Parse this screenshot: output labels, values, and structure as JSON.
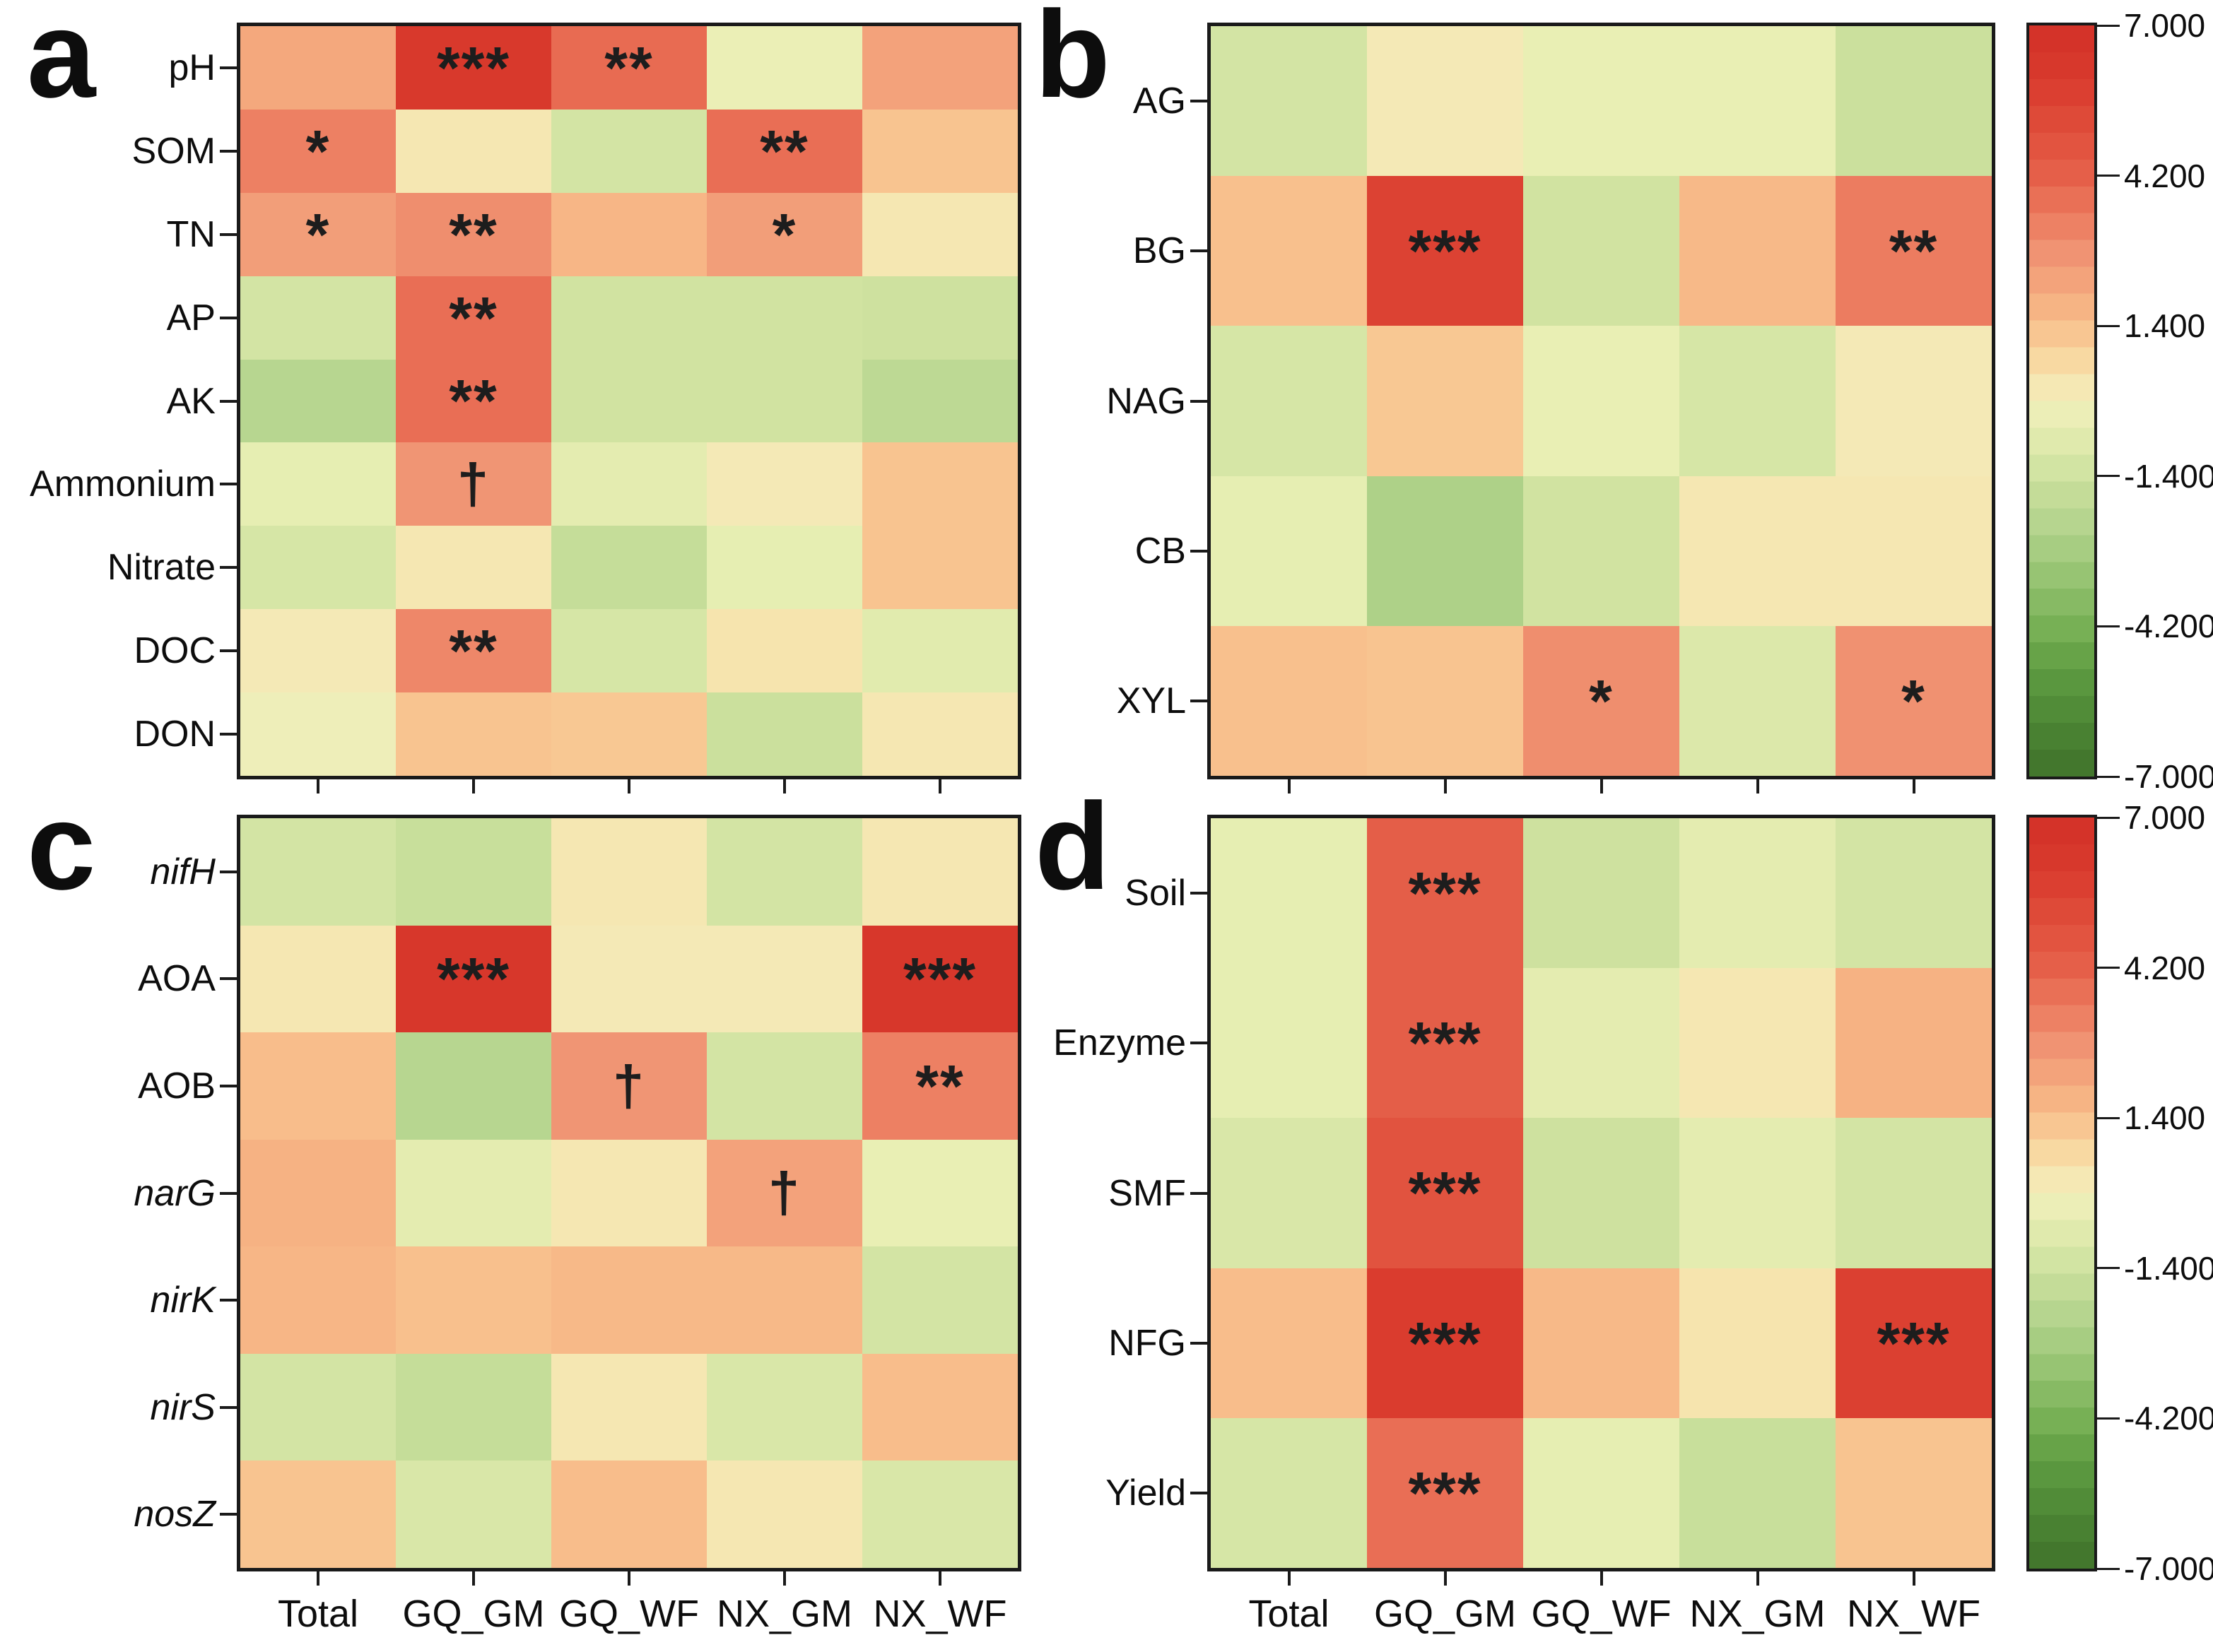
{
  "columns": [
    "Total",
    "GQ_GM",
    "GQ_WF",
    "NX_GM",
    "NX_WF"
  ],
  "chart_data": [
    {
      "id": "a",
      "type": "heatmap",
      "panel_label": "a",
      "rows": [
        "pH",
        "SOM",
        "TN",
        "AP",
        "AK",
        "Ammonium",
        "Nitrate",
        "DOC",
        "DON"
      ],
      "italic_rows": [],
      "columns": [
        "Total",
        "GQ_GM",
        "GQ_WF",
        "NX_GM",
        "NX_WF"
      ],
      "show_x_labels": false,
      "zlim": [
        -7,
        7
      ],
      "values": [
        [
          2.1,
          6.1,
          3.9,
          -0.3,
          2.3
        ],
        [
          3.3,
          0.3,
          -1.2,
          3.8,
          1.3
        ],
        [
          2.4,
          2.9,
          1.7,
          2.4,
          0.3
        ],
        [
          -1.2,
          3.8,
          -1.3,
          -1.3,
          -1.4
        ],
        [
          -2.2,
          3.8,
          -1.3,
          -1.3,
          -2.0
        ],
        [
          -0.5,
          2.7,
          -0.6,
          0.2,
          1.3
        ],
        [
          -1.1,
          0.3,
          -1.7,
          -0.5,
          1.3
        ],
        [
          0.2,
          3.1,
          -1.1,
          0.4,
          -0.7
        ],
        [
          -0.2,
          1.3,
          1.2,
          -1.5,
          0.3
        ]
      ],
      "significance": [
        [
          "",
          "***",
          "**",
          "",
          ""
        ],
        [
          "*",
          "",
          "",
          "**",
          ""
        ],
        [
          "*",
          "**",
          "",
          "*",
          ""
        ],
        [
          "",
          "**",
          "",
          "",
          ""
        ],
        [
          "",
          "**",
          "",
          "",
          ""
        ],
        [
          "",
          "†",
          "",
          "",
          ""
        ],
        [
          "",
          "",
          "",
          "",
          ""
        ],
        [
          "",
          "**",
          "",
          "",
          ""
        ],
        [
          "",
          "",
          "",
          "",
          ""
        ]
      ]
    },
    {
      "id": "b",
      "type": "heatmap",
      "panel_label": "b",
      "rows": [
        "AG",
        "BG",
        "NAG",
        "CB",
        "XYL"
      ],
      "italic_rows": [],
      "columns": [
        "Total",
        "GQ_GM",
        "GQ_WF",
        "NX_GM",
        "NX_WF"
      ],
      "show_x_labels": false,
      "zlim": [
        -7,
        7
      ],
      "values": [
        [
          -1.2,
          0.2,
          -0.4,
          -0.4,
          -1.5
        ],
        [
          1.4,
          5.6,
          -1.3,
          1.6,
          3.4
        ],
        [
          -1.1,
          1.2,
          -0.4,
          -1.1,
          0.2
        ],
        [
          -0.5,
          -2.5,
          -1.3,
          0.3,
          0.3
        ],
        [
          1.4,
          1.3,
          2.9,
          -0.9,
          2.8
        ]
      ],
      "significance": [
        [
          "",
          "",
          "",
          "",
          ""
        ],
        [
          "",
          "***",
          "",
          "",
          "**"
        ],
        [
          "",
          "",
          "",
          "",
          ""
        ],
        [
          "",
          "",
          "",
          "",
          ""
        ],
        [
          "",
          "",
          "*",
          "",
          "*"
        ]
      ]
    },
    {
      "id": "c",
      "type": "heatmap",
      "panel_label": "c",
      "rows": [
        "nifH",
        "AOA",
        "AOB",
        "narG",
        "nirK",
        "nirS",
        "nosZ"
      ],
      "italic_rows": [
        "nifH",
        "narG",
        "nirK",
        "nirS",
        "nosZ"
      ],
      "columns": [
        "Total",
        "GQ_GM",
        "GQ_WF",
        "NX_GM",
        "NX_WF"
      ],
      "show_x_labels": true,
      "zlim": [
        -7,
        7
      ],
      "values": [
        [
          -1.2,
          -1.6,
          0.3,
          -1.2,
          0.3
        ],
        [
          0.3,
          6.3,
          0.2,
          0.2,
          6.3
        ],
        [
          1.5,
          -2.2,
          2.7,
          -1.2,
          3.3
        ],
        [
          1.8,
          -0.6,
          0.3,
          2.3,
          -0.4
        ],
        [
          1.7,
          1.4,
          1.6,
          1.6,
          -1.2
        ],
        [
          -1.2,
          -1.7,
          0.3,
          -1.0,
          1.5
        ],
        [
          1.3,
          -1.0,
          1.5,
          0.3,
          -1.0
        ]
      ],
      "significance": [
        [
          "",
          "",
          "",
          "",
          ""
        ],
        [
          "",
          "***",
          "",
          "",
          "***"
        ],
        [
          "",
          "",
          "†",
          "",
          "**"
        ],
        [
          "",
          "",
          "",
          "†",
          ""
        ],
        [
          "",
          "",
          "",
          "",
          ""
        ],
        [
          "",
          "",
          "",
          "",
          ""
        ],
        [
          "",
          "",
          "",
          "",
          ""
        ]
      ]
    },
    {
      "id": "d",
      "type": "heatmap",
      "panel_label": "d",
      "rows": [
        "Soil",
        "Enzyme",
        "SMF",
        "NFG",
        "Yield"
      ],
      "italic_rows": [],
      "columns": [
        "Total",
        "GQ_GM",
        "GQ_WF",
        "NX_GM",
        "NX_WF"
      ],
      "show_x_labels": true,
      "zlim": [
        -7,
        7
      ],
      "values": [
        [
          -0.5,
          4.3,
          -1.4,
          -0.6,
          -1.2
        ],
        [
          -0.5,
          4.3,
          -0.6,
          0.3,
          1.8
        ],
        [
          -1.0,
          4.8,
          -1.4,
          -0.6,
          -1.2
        ],
        [
          1.5,
          5.9,
          1.6,
          0.4,
          5.7
        ],
        [
          -1.1,
          3.8,
          -0.5,
          -1.6,
          1.3
        ]
      ],
      "significance": [
        [
          "",
          "***",
          "",
          "",
          ""
        ],
        [
          "",
          "***",
          "",
          "",
          ""
        ],
        [
          "",
          "***",
          "",
          "",
          ""
        ],
        [
          "",
          "***",
          "",
          "",
          "***"
        ],
        [
          "",
          "***",
          "",
          "",
          ""
        ]
      ]
    }
  ],
  "colorbars": [
    {
      "id": "top",
      "tick_labels": [
        "7.000",
        "4.200",
        "1.400",
        "-1.400",
        "-4.200",
        "-7.000"
      ]
    },
    {
      "id": "bottom",
      "tick_labels": [
        "7.000",
        "4.200",
        "1.400",
        "-1.400",
        "-4.200",
        "-7.000"
      ]
    }
  ],
  "colormap": {
    "vmin": -7,
    "vmax": 7,
    "steps": 28,
    "anchors": [
      [
        -7.0,
        "#40722b"
      ],
      [
        -6.0,
        "#4c8634"
      ],
      [
        -5.0,
        "#5f9c42"
      ],
      [
        -4.2,
        "#79b156"
      ],
      [
        -3.0,
        "#9fc97b"
      ],
      [
        -2.2,
        "#b7d690"
      ],
      [
        -1.5,
        "#cbe09d"
      ],
      [
        -1.0,
        "#d9e7a8"
      ],
      [
        -0.4,
        "#e9efb4"
      ],
      [
        0.0,
        "#f2edbd"
      ],
      [
        0.3,
        "#f5e7b2"
      ],
      [
        0.8,
        "#f8d7a0"
      ],
      [
        1.4,
        "#f8c08d"
      ],
      [
        2.0,
        "#f5ab7e"
      ],
      [
        2.6,
        "#f19877"
      ],
      [
        3.4,
        "#ec7c60"
      ],
      [
        4.2,
        "#e5604a"
      ],
      [
        5.0,
        "#e04f3b"
      ],
      [
        6.0,
        "#d93a2d"
      ],
      [
        7.0,
        "#d23127"
      ]
    ]
  }
}
